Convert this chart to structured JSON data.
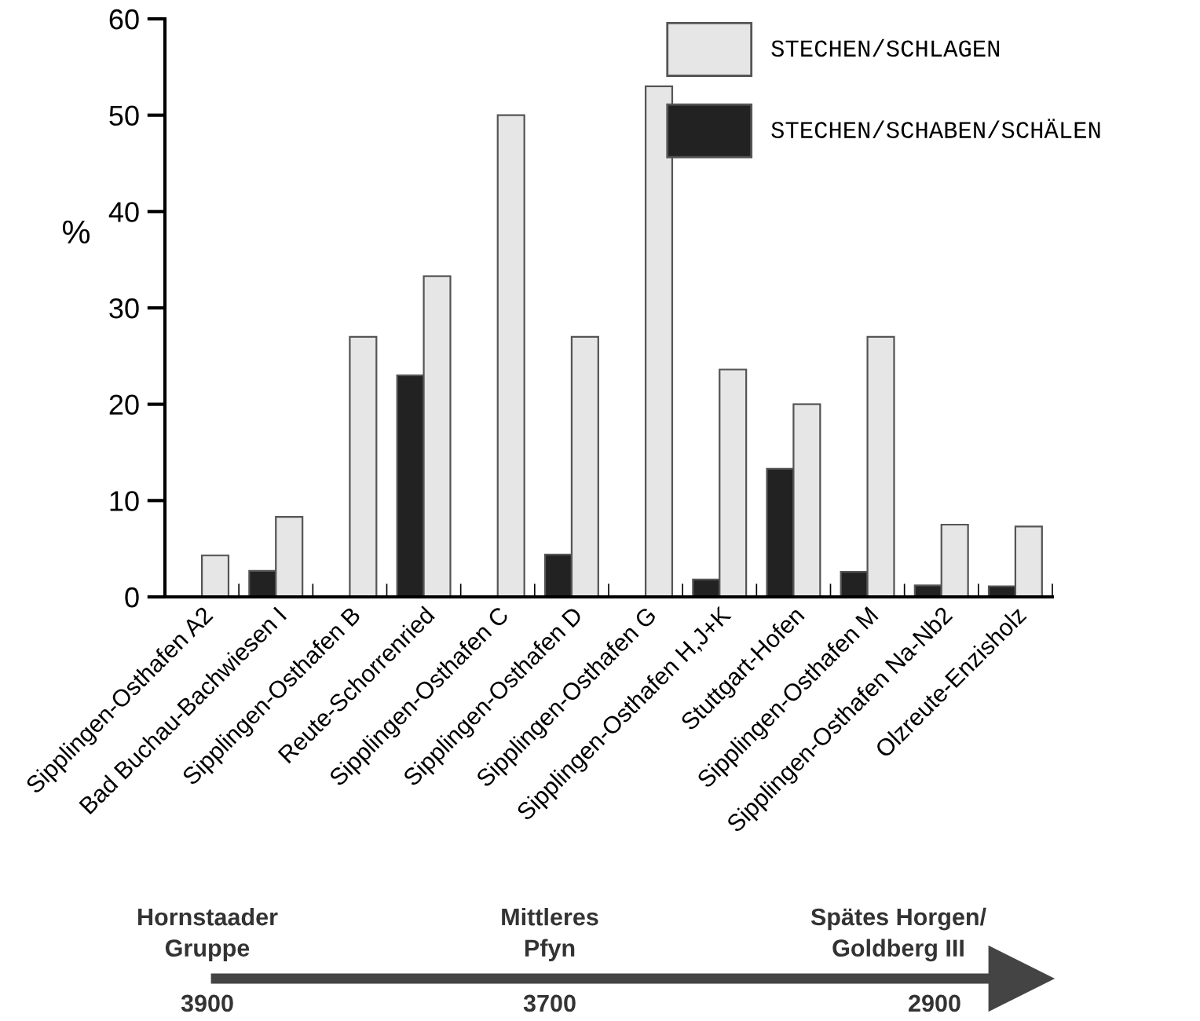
{
  "chart_data": {
    "type": "bar",
    "ylabel": "%",
    "categories": [
      "Sipplingen-Osthafen A2",
      "Bad Buchau-Bachwiesen I",
      "Sipplingen-Osthafen B",
      "Reute-Schorrenried",
      "Sipplingen-Osthafen C",
      "Sipplingen-Osthafen D",
      "Sipplingen-Osthafen G",
      "Sipplingen-Osthafen H,J+K",
      "Stuttgart-Hofen",
      "Sipplingen-Osthafen M",
      "Sipplingen-Osthafen Na-Nb2",
      "Olzreute-Enzisholz"
    ],
    "series": [
      {
        "name": "STECHEN/SCHABEN/SCHÄLEN",
        "color": "#222222",
        "values": [
          null,
          2.7,
          null,
          23,
          null,
          4.4,
          null,
          1.8,
          13.3,
          2.6,
          1.2,
          1.1
        ]
      },
      {
        "name": "STECHEN/SCHLAGEN",
        "color": "#e6e6e6",
        "values": [
          4.3,
          8.3,
          27,
          33.3,
          50,
          27,
          53,
          23.6,
          20,
          27,
          7.5,
          7.3
        ]
      }
    ],
    "ylim": [
      0,
      60
    ],
    "yticks": [
      0,
      10,
      20,
      30,
      40,
      50,
      60
    ],
    "grid": false,
    "legend": "top right",
    "annotations": [
      "Hornstaader\nGruppe",
      "3900",
      "Mittleres\nPfyn",
      "3700",
      "Spätes Horgen/\nGoldberg III",
      "2900"
    ]
  }
}
